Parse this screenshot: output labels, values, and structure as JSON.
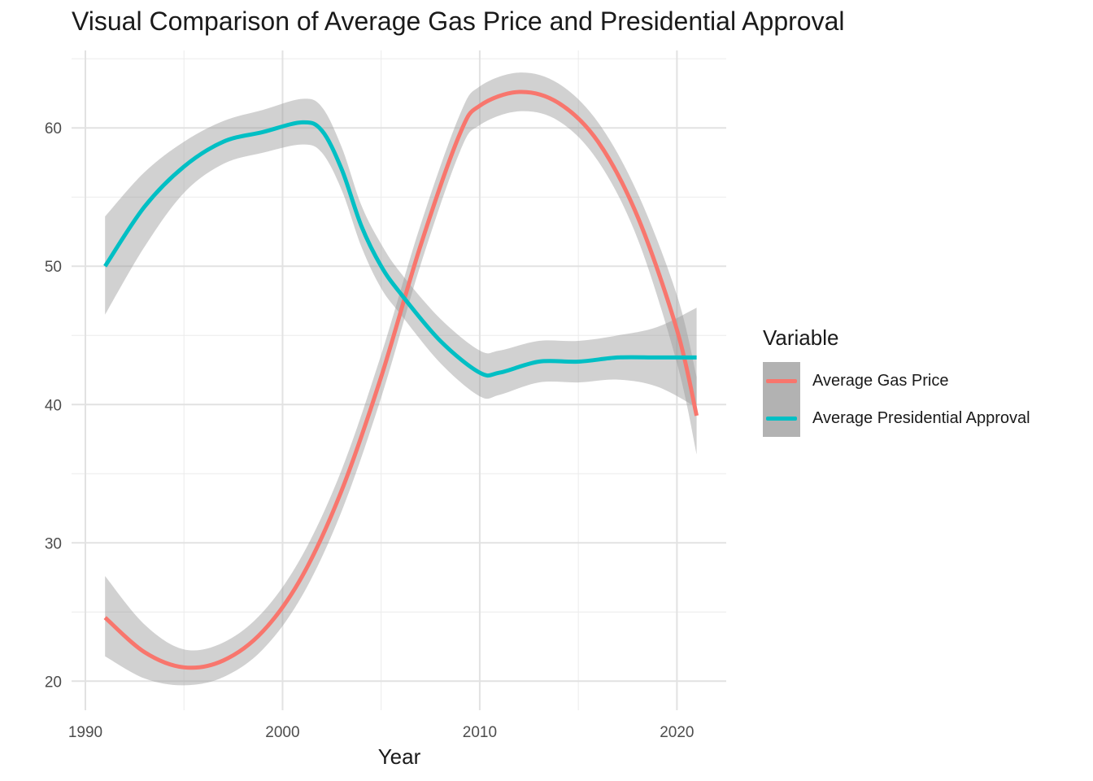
{
  "chart_data": {
    "type": "line",
    "title": "Visual Comparison of Average Gas Price and Presidential Approval",
    "xlabel": "Year",
    "ylabel": "",
    "xlim": [
      1989.3,
      2022.5
    ],
    "ylim": [
      17.9,
      65.6
    ],
    "x_ticks": [
      1990,
      2000,
      2010,
      2020
    ],
    "y_ticks": [
      20,
      30,
      40,
      50,
      60
    ],
    "grid": true,
    "legend": {
      "title": "Variable",
      "placement": "right"
    },
    "series": [
      {
        "name": "Average Gas Price",
        "color": "#f8766d",
        "x": [
          1991,
          1993,
          1995,
          1997,
          1999,
          2001,
          2003,
          2005,
          2007,
          2009,
          2010,
          2012,
          2014,
          2016,
          2018,
          2020,
          2021
        ],
        "values": [
          24.6,
          22.1,
          21.0,
          21.5,
          23.6,
          27.6,
          33.8,
          42.0,
          51.5,
          59.6,
          61.6,
          62.6,
          61.8,
          59.0,
          53.6,
          45.4,
          39.2
        ],
        "band_lower": [
          21.8,
          20.2,
          19.7,
          20.3,
          22.3,
          26.2,
          32.3,
          40.5,
          50.1,
          58.3,
          60.2,
          61.2,
          60.5,
          57.6,
          52.0,
          43.0,
          36.4
        ],
        "band_upper": [
          27.6,
          24.1,
          22.3,
          22.8,
          25.0,
          29.1,
          35.3,
          43.6,
          53.0,
          61.0,
          63.0,
          64.0,
          63.2,
          60.4,
          55.3,
          47.9,
          42.0
        ]
      },
      {
        "name": "Average Presidential Approval",
        "color": "#00bfc4",
        "x": [
          1991,
          1993,
          1995,
          1997,
          1999,
          2001,
          2002,
          2003,
          2004,
          2005,
          2006,
          2008,
          2010,
          2011,
          2013,
          2015,
          2017,
          2019,
          2021
        ],
        "values": [
          50.0,
          54.3,
          57.2,
          59.0,
          59.7,
          60.4,
          59.8,
          57.0,
          52.9,
          50.0,
          48.0,
          44.6,
          42.3,
          42.3,
          43.1,
          43.1,
          43.4,
          43.4,
          43.4
        ],
        "band_lower": [
          46.5,
          51.4,
          55.3,
          57.4,
          58.2,
          58.8,
          58.2,
          55.5,
          51.4,
          48.4,
          46.5,
          43.0,
          40.6,
          40.7,
          41.6,
          41.6,
          41.8,
          41.3,
          39.8
        ],
        "band_upper": [
          53.6,
          56.8,
          59.0,
          60.5,
          61.3,
          62.1,
          61.5,
          58.6,
          54.4,
          51.6,
          49.5,
          46.2,
          43.9,
          43.9,
          44.6,
          44.6,
          45.0,
          45.6,
          47.0
        ]
      }
    ]
  }
}
